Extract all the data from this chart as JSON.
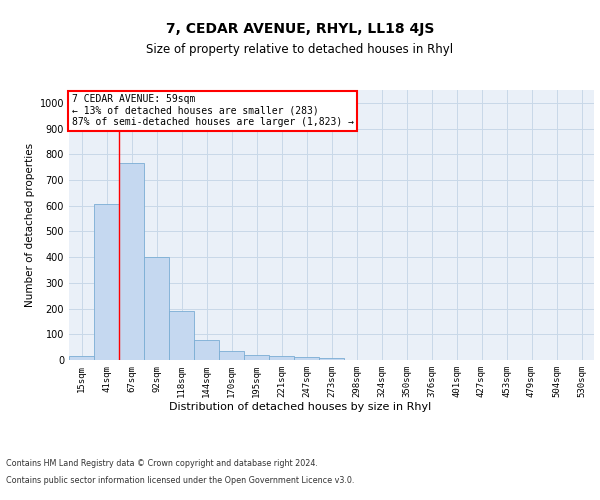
{
  "title1": "7, CEDAR AVENUE, RHYL, LL18 4JS",
  "title2": "Size of property relative to detached houses in Rhyl",
  "xlabel": "Distribution of detached houses by size in Rhyl",
  "ylabel": "Number of detached properties",
  "bin_labels": [
    "15sqm",
    "41sqm",
    "67sqm",
    "92sqm",
    "118sqm",
    "144sqm",
    "170sqm",
    "195sqm",
    "221sqm",
    "247sqm",
    "273sqm",
    "298sqm",
    "324sqm",
    "350sqm",
    "376sqm",
    "401sqm",
    "427sqm",
    "453sqm",
    "479sqm",
    "504sqm",
    "530sqm"
  ],
  "bar_heights": [
    15,
    607,
    765,
    400,
    190,
    78,
    35,
    20,
    15,
    12,
    8,
    0,
    0,
    0,
    0,
    0,
    0,
    0,
    0,
    0,
    0
  ],
  "bar_color": "#c5d8f0",
  "bar_edgecolor": "#7aadd4",
  "vline_x": 1.5,
  "vline_color": "red",
  "annotation_text": "7 CEDAR AVENUE: 59sqm\n← 13% of detached houses are smaller (283)\n87% of semi-detached houses are larger (1,823) →",
  "annotation_box_color": "white",
  "annotation_box_edgecolor": "red",
  "ylim": [
    0,
    1050
  ],
  "yticks": [
    0,
    100,
    200,
    300,
    400,
    500,
    600,
    700,
    800,
    900,
    1000
  ],
  "grid_color": "#c8d8e8",
  "background_color": "#eaf0f8",
  "footer_line1": "Contains HM Land Registry data © Crown copyright and database right 2024.",
  "footer_line2": "Contains public sector information licensed under the Open Government Licence v3.0.",
  "title1_fontsize": 10,
  "title2_fontsize": 8.5,
  "ylabel_fontsize": 7.5,
  "xlabel_fontsize": 8,
  "tick_fontsize": 6.5,
  "annotation_fontsize": 7,
  "footer_fontsize": 5.8
}
